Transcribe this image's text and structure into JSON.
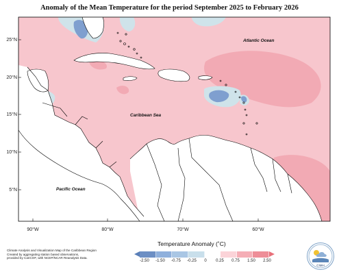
{
  "title": "Anomaly of the Mean Temperature for the period September 2025 to February 2026",
  "ocean_labels": {
    "atlantic": "Atlantic Ocean",
    "caribbean": "Caribbean Sea",
    "pacific": "Pacific Ocean"
  },
  "lat_labels": [
    "25°N",
    "20°N",
    "15°N",
    "10°N",
    "5°N"
  ],
  "lon_labels": [
    "90°W",
    "80°W",
    "70°W",
    "60°W"
  ],
  "footnote": [
    "Climate Analysis and Visualization Map of the Caribbean Region",
    "Created by aggregating station based observations,",
    "provided by CariCOF, with NCEP/NCAR Reanalysis Data."
  ],
  "legend": {
    "title": "Temperature Anomaly (˚C)",
    "ticks": [
      "-2.50",
      "-1.50",
      "-0.75",
      "-0.25",
      "0",
      "0.25",
      "0.75",
      "1.50",
      "2.50"
    ],
    "colors": [
      "#6d8fc4",
      "#8fb0dc",
      "#a9c6e4",
      "#c9dfeb",
      "#ffffff",
      "#fbd3d8",
      "#f5aeb6",
      "#ee8e98"
    ],
    "tip_low_color": "#5a7fb8",
    "tip_high_color": "#e8707a"
  },
  "logo": {
    "text": "CIMH",
    "icon": "cimh-logo-icon"
  },
  "colors": {
    "land": "#ffffff",
    "ocean_warm": "#f7c6cd",
    "ocean_warmer": "#f2aab4",
    "cool": "#cfe3ea",
    "cooler": "#7f9fcf",
    "border": "#000000"
  }
}
